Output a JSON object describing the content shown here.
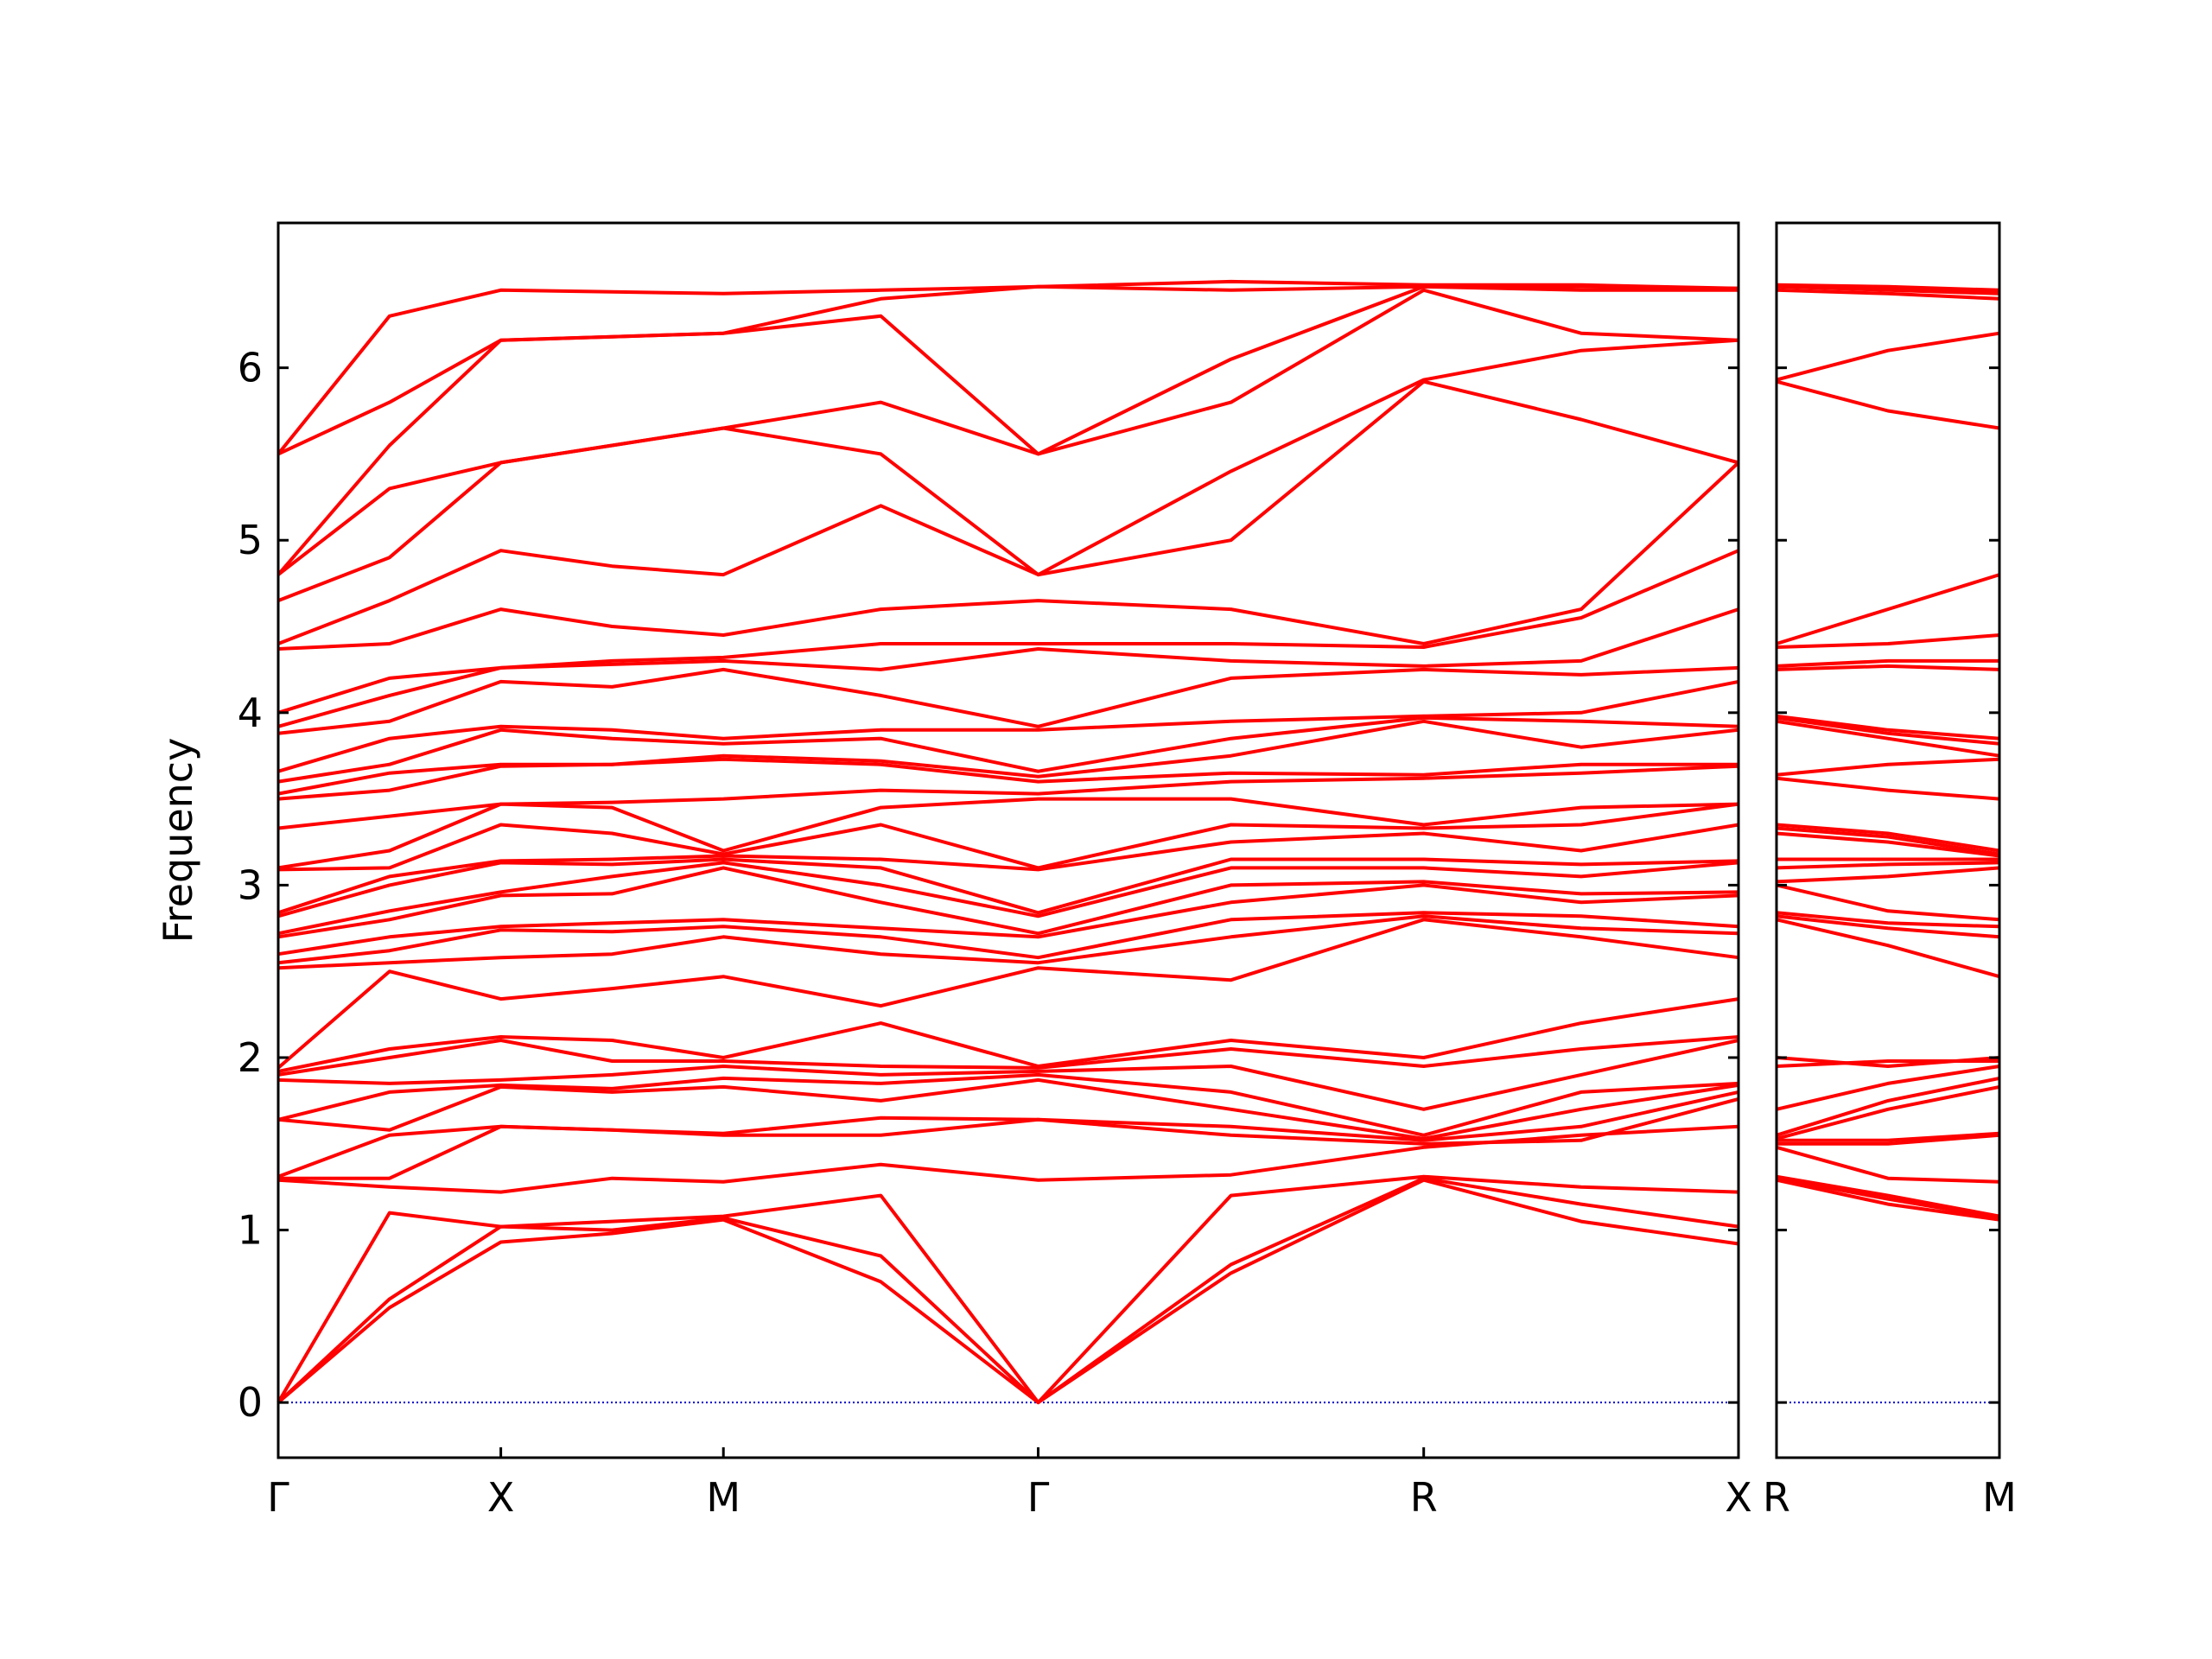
{
  "chart_data": [
    {
      "type": "line",
      "ylabel": "Frequency",
      "color": "#ff0000",
      "zero_line": {
        "value": 0,
        "color": "#0000cc"
      },
      "ytick_labels": true,
      "xlim": [
        0,
        3.2802
      ],
      "ylim": [
        -0.32,
        6.84
      ],
      "xticks": [
        {
          "value": 0,
          "label": "Γ"
        },
        {
          "value": 0.5,
          "label": "X"
        },
        {
          "value": 1.0,
          "label": "M"
        },
        {
          "value": 1.7071,
          "label": "Γ"
        },
        {
          "value": 2.5731,
          "label": "R"
        },
        {
          "value": 3.2802,
          "label": "X"
        }
      ],
      "yticks": [
        0,
        1,
        2,
        3,
        4,
        5,
        6
      ],
      "x": [
        0,
        0.25,
        0.5,
        0.75,
        1.0,
        1.3536,
        1.7071,
        2.1401,
        2.5731,
        2.9267,
        3.2802
      ],
      "series": [
        {
          "values": [
            0,
            0.55,
            0.93,
            0.98,
            1.06,
            0.7,
            0,
            0.75,
            1.29,
            1.05,
            0.92
          ]
        },
        {
          "values": [
            0,
            0.6,
            1.02,
            1.0,
            1.07,
            0.85,
            0,
            0.8,
            1.3,
            1.15,
            1.02
          ]
        },
        {
          "values": [
            0,
            1.1,
            1.02,
            1.05,
            1.08,
            1.2,
            0,
            1.2,
            1.31,
            1.25,
            1.22
          ]
        },
        {
          "values": [
            1.29,
            1.25,
            1.22,
            1.3,
            1.28,
            1.38,
            1.29,
            1.32,
            1.48,
            1.55,
            1.6
          ]
        },
        {
          "values": [
            1.3,
            1.3,
            1.6,
            1.58,
            1.55,
            1.55,
            1.64,
            1.55,
            1.5,
            1.52,
            1.76
          ]
        },
        {
          "values": [
            1.31,
            1.55,
            1.6,
            1.58,
            1.56,
            1.65,
            1.64,
            1.6,
            1.52,
            1.6,
            1.8
          ]
        },
        {
          "values": [
            1.64,
            1.58,
            1.83,
            1.8,
            1.83,
            1.75,
            1.87,
            1.7,
            1.53,
            1.7,
            1.84
          ]
        },
        {
          "values": [
            1.64,
            1.8,
            1.84,
            1.82,
            1.88,
            1.85,
            1.9,
            1.8,
            1.55,
            1.8,
            1.85
          ]
        },
        {
          "values": [
            1.87,
            1.85,
            1.87,
            1.9,
            1.95,
            1.9,
            1.92,
            1.95,
            1.7,
            1.9,
            2.1
          ]
        },
        {
          "values": [
            1.9,
            2.0,
            2.1,
            1.98,
            1.98,
            1.95,
            1.94,
            2.05,
            1.95,
            2.05,
            2.12
          ]
        },
        {
          "values": [
            1.92,
            2.05,
            2.12,
            2.1,
            2.0,
            2.2,
            1.95,
            2.1,
            2.0,
            2.2,
            2.34
          ]
        },
        {
          "values": [
            1.94,
            2.5,
            2.34,
            2.4,
            2.47,
            2.3,
            2.52,
            2.45,
            2.8,
            2.7,
            2.58
          ]
        },
        {
          "values": [
            2.52,
            2.55,
            2.58,
            2.6,
            2.7,
            2.6,
            2.55,
            2.7,
            2.82,
            2.75,
            2.72
          ]
        },
        {
          "values": [
            2.55,
            2.62,
            2.74,
            2.73,
            2.76,
            2.7,
            2.58,
            2.8,
            2.84,
            2.82,
            2.76
          ]
        },
        {
          "values": [
            2.6,
            2.7,
            2.76,
            2.78,
            2.8,
            2.75,
            2.7,
            2.9,
            3.0,
            2.9,
            2.94
          ]
        },
        {
          "values": [
            2.7,
            2.8,
            2.94,
            2.95,
            3.1,
            2.9,
            2.72,
            3.0,
            3.02,
            2.95,
            2.96
          ]
        },
        {
          "values": [
            2.72,
            2.85,
            2.96,
            3.05,
            3.13,
            3.0,
            2.82,
            3.1,
            3.1,
            3.05,
            3.13
          ]
        },
        {
          "values": [
            2.82,
            3.0,
            3.13,
            3.12,
            3.15,
            3.1,
            2.84,
            3.15,
            3.15,
            3.12,
            3.14
          ]
        },
        {
          "values": [
            2.84,
            3.05,
            3.14,
            3.15,
            3.17,
            3.15,
            3.09,
            3.25,
            3.3,
            3.2,
            3.35
          ]
        },
        {
          "values": [
            3.09,
            3.1,
            3.35,
            3.3,
            3.18,
            3.35,
            3.1,
            3.35,
            3.33,
            3.35,
            3.47
          ]
        },
        {
          "values": [
            3.1,
            3.2,
            3.47,
            3.45,
            3.2,
            3.45,
            3.5,
            3.5,
            3.35,
            3.45,
            3.47
          ]
        },
        {
          "values": [
            3.33,
            3.4,
            3.47,
            3.48,
            3.5,
            3.55,
            3.53,
            3.6,
            3.62,
            3.65,
            3.69
          ]
        },
        {
          "values": [
            3.5,
            3.55,
            3.69,
            3.7,
            3.73,
            3.7,
            3.6,
            3.65,
            3.64,
            3.7,
            3.7
          ]
        },
        {
          "values": [
            3.53,
            3.65,
            3.7,
            3.7,
            3.75,
            3.72,
            3.63,
            3.75,
            3.95,
            3.8,
            3.9
          ]
        },
        {
          "values": [
            3.6,
            3.7,
            3.9,
            3.85,
            3.82,
            3.85,
            3.66,
            3.85,
            3.97,
            3.95,
            3.92
          ]
        },
        {
          "values": [
            3.66,
            3.85,
            3.92,
            3.9,
            3.85,
            3.9,
            3.9,
            3.95,
            3.98,
            4.0,
            4.18
          ]
        },
        {
          "values": [
            3.88,
            3.95,
            4.18,
            4.15,
            4.25,
            4.1,
            3.92,
            4.2,
            4.25,
            4.22,
            4.26
          ]
        },
        {
          "values": [
            3.92,
            4.1,
            4.26,
            4.28,
            4.3,
            4.25,
            4.37,
            4.3,
            4.27,
            4.3,
            4.6
          ]
        },
        {
          "values": [
            4.0,
            4.2,
            4.26,
            4.3,
            4.32,
            4.4,
            4.4,
            4.4,
            4.38,
            4.55,
            4.94
          ]
        },
        {
          "values": [
            4.37,
            4.4,
            4.6,
            4.5,
            4.45,
            4.6,
            4.65,
            4.6,
            4.4,
            4.6,
            5.45
          ]
        },
        {
          "values": [
            4.4,
            4.65,
            4.94,
            4.85,
            4.8,
            5.2,
            4.8,
            5.0,
            5.92,
            5.7,
            5.45
          ]
        },
        {
          "values": [
            4.65,
            4.9,
            5.45,
            5.55,
            5.65,
            5.5,
            4.8,
            5.4,
            5.93,
            6.1,
            6.16
          ]
        },
        {
          "values": [
            4.8,
            5.3,
            5.45,
            5.55,
            5.65,
            5.8,
            5.5,
            5.8,
            6.45,
            6.2,
            6.16
          ]
        },
        {
          "values": [
            4.8,
            5.55,
            6.16,
            6.18,
            6.2,
            6.3,
            5.5,
            6.05,
            6.47,
            6.45,
            6.45
          ]
        },
        {
          "values": [
            5.5,
            5.8,
            6.16,
            6.18,
            6.2,
            6.4,
            6.47,
            6.45,
            6.47,
            6.47,
            6.46
          ]
        },
        {
          "values": [
            5.5,
            6.3,
            6.45,
            6.44,
            6.43,
            6.45,
            6.47,
            6.5,
            6.48,
            6.48,
            6.46
          ]
        }
      ]
    },
    {
      "type": "line",
      "color": "#ff0000",
      "zero_line": {
        "value": 0,
        "color": "#0000cc"
      },
      "ytick_labels": false,
      "xlim": [
        0,
        0.5
      ],
      "ylim": [
        -0.32,
        6.84
      ],
      "xticks": [
        {
          "value": 0,
          "label": "R"
        },
        {
          "value": 0.5,
          "label": "M"
        }
      ],
      "yticks": [
        0,
        1,
        2,
        3,
        4,
        5,
        6
      ],
      "x": [
        0,
        0.25,
        0.5
      ],
      "series": [
        {
          "values": [
            1.29,
            1.15,
            1.06
          ]
        },
        {
          "values": [
            1.3,
            1.18,
            1.07
          ]
        },
        {
          "values": [
            1.31,
            1.2,
            1.08
          ]
        },
        {
          "values": [
            1.48,
            1.3,
            1.28
          ]
        },
        {
          "values": [
            1.5,
            1.5,
            1.55
          ]
        },
        {
          "values": [
            1.52,
            1.52,
            1.56
          ]
        },
        {
          "values": [
            1.53,
            1.7,
            1.83
          ]
        },
        {
          "values": [
            1.55,
            1.75,
            1.88
          ]
        },
        {
          "values": [
            1.7,
            1.85,
            1.95
          ]
        },
        {
          "values": [
            1.95,
            1.98,
            1.98
          ]
        },
        {
          "values": [
            2.0,
            1.95,
            2.0
          ]
        },
        {
          "values": [
            2.8,
            2.65,
            2.47
          ]
        },
        {
          "values": [
            2.82,
            2.75,
            2.7
          ]
        },
        {
          "values": [
            2.84,
            2.78,
            2.76
          ]
        },
        {
          "values": [
            3.0,
            2.85,
            2.8
          ]
        },
        {
          "values": [
            3.02,
            3.05,
            3.1
          ]
        },
        {
          "values": [
            3.1,
            3.12,
            3.13
          ]
        },
        {
          "values": [
            3.15,
            3.15,
            3.15
          ]
        },
        {
          "values": [
            3.3,
            3.25,
            3.17
          ]
        },
        {
          "values": [
            3.33,
            3.28,
            3.18
          ]
        },
        {
          "values": [
            3.35,
            3.3,
            3.2
          ]
        },
        {
          "values": [
            3.62,
            3.55,
            3.5
          ]
        },
        {
          "values": [
            3.64,
            3.7,
            3.73
          ]
        },
        {
          "values": [
            3.95,
            3.85,
            3.75
          ]
        },
        {
          "values": [
            3.97,
            3.88,
            3.82
          ]
        },
        {
          "values": [
            3.98,
            3.9,
            3.85
          ]
        },
        {
          "values": [
            4.25,
            4.27,
            4.25
          ]
        },
        {
          "values": [
            4.27,
            4.3,
            4.3
          ]
        },
        {
          "values": [
            4.38,
            4.4,
            4.45
          ]
        },
        {
          "values": [
            4.4,
            4.6,
            4.8
          ]
        },
        {
          "values": [
            5.92,
            5.75,
            5.65
          ]
        },
        {
          "values": [
            5.93,
            6.1,
            6.2
          ]
        },
        {
          "values": [
            6.45,
            6.43,
            6.4
          ]
        },
        {
          "values": [
            6.47,
            6.45,
            6.43
          ]
        },
        {
          "values": [
            6.47,
            6.46,
            6.44
          ]
        },
        {
          "values": [
            6.48,
            6.47,
            6.45
          ]
        }
      ]
    }
  ]
}
